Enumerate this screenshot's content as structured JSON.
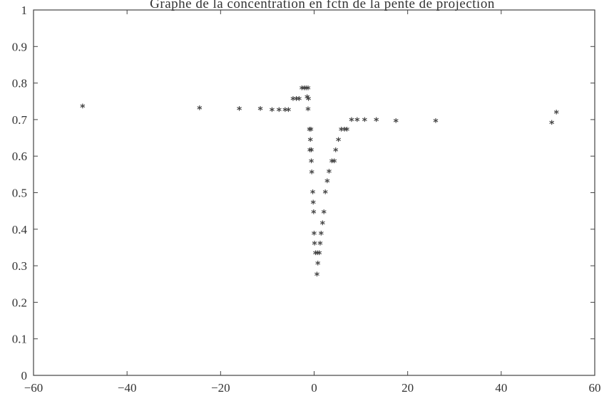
{
  "chart_data": {
    "type": "scatter",
    "title": "Graphe de la concentration en fctn de la pente de projection",
    "marker": "*",
    "marker_color": "#444444",
    "xlim": [
      -60,
      60
    ],
    "ylim": [
      0,
      1
    ],
    "x_ticks": [
      -60,
      -40,
      -20,
      0,
      20,
      40,
      60
    ],
    "x_tick_labels": [
      "−60",
      "−40",
      "−20",
      "0",
      "20",
      "40",
      "60"
    ],
    "y_ticks": [
      0,
      0.1,
      0.2,
      0.3,
      0.4,
      0.5,
      0.6,
      0.7,
      0.8,
      0.9,
      1
    ],
    "y_tick_labels": [
      "0",
      "0.1",
      "0.2",
      "0.3",
      "0.4",
      "0.5",
      "0.6",
      "0.7",
      "0.8",
      "0.9",
      "1"
    ],
    "grid": false,
    "points": [
      {
        "x": -49.5,
        "y": 0.735
      },
      {
        "x": -24.5,
        "y": 0.73
      },
      {
        "x": -16.0,
        "y": 0.728
      },
      {
        "x": -11.5,
        "y": 0.728
      },
      {
        "x": -9.0,
        "y": 0.725
      },
      {
        "x": -7.5,
        "y": 0.725
      },
      {
        "x": -6.2,
        "y": 0.725
      },
      {
        "x": -5.5,
        "y": 0.725
      },
      {
        "x": -4.5,
        "y": 0.755
      },
      {
        "x": -3.8,
        "y": 0.755
      },
      {
        "x": -3.2,
        "y": 0.755
      },
      {
        "x": -2.6,
        "y": 0.785
      },
      {
        "x": -2.1,
        "y": 0.785
      },
      {
        "x": -1.7,
        "y": 0.785
      },
      {
        "x": -1.3,
        "y": 0.785
      },
      {
        "x": -1.5,
        "y": 0.76
      },
      {
        "x": -1.2,
        "y": 0.755
      },
      {
        "x": -1.3,
        "y": 0.727
      },
      {
        "x": -1.0,
        "y": 0.672
      },
      {
        "x": -0.7,
        "y": 0.672
      },
      {
        "x": -0.8,
        "y": 0.643
      },
      {
        "x": -0.9,
        "y": 0.615
      },
      {
        "x": -0.6,
        "y": 0.615
      },
      {
        "x": -0.6,
        "y": 0.585
      },
      {
        "x": -0.5,
        "y": 0.555
      },
      {
        "x": -0.3,
        "y": 0.5
      },
      {
        "x": -0.2,
        "y": 0.472
      },
      {
        "x": -0.1,
        "y": 0.445
      },
      {
        "x": 0.0,
        "y": 0.387
      },
      {
        "x": 0.1,
        "y": 0.36
      },
      {
        "x": 0.3,
        "y": 0.333
      },
      {
        "x": 0.7,
        "y": 0.333
      },
      {
        "x": 1.1,
        "y": 0.333
      },
      {
        "x": 0.8,
        "y": 0.305
      },
      {
        "x": 0.6,
        "y": 0.275
      },
      {
        "x": 1.3,
        "y": 0.36
      },
      {
        "x": 1.5,
        "y": 0.387
      },
      {
        "x": 1.8,
        "y": 0.415
      },
      {
        "x": 2.1,
        "y": 0.445
      },
      {
        "x": 2.4,
        "y": 0.5
      },
      {
        "x": 2.8,
        "y": 0.53
      },
      {
        "x": 3.2,
        "y": 0.557
      },
      {
        "x": 3.8,
        "y": 0.585
      },
      {
        "x": 4.3,
        "y": 0.585
      },
      {
        "x": 4.6,
        "y": 0.615
      },
      {
        "x": 5.2,
        "y": 0.643
      },
      {
        "x": 5.8,
        "y": 0.672
      },
      {
        "x": 6.5,
        "y": 0.672
      },
      {
        "x": 7.0,
        "y": 0.672
      },
      {
        "x": 8.0,
        "y": 0.698
      },
      {
        "x": 9.2,
        "y": 0.698
      },
      {
        "x": 10.8,
        "y": 0.698
      },
      {
        "x": 13.3,
        "y": 0.698
      },
      {
        "x": 17.5,
        "y": 0.695
      },
      {
        "x": 26.0,
        "y": 0.695
      },
      {
        "x": 50.8,
        "y": 0.69
      },
      {
        "x": 51.8,
        "y": 0.718
      }
    ]
  }
}
